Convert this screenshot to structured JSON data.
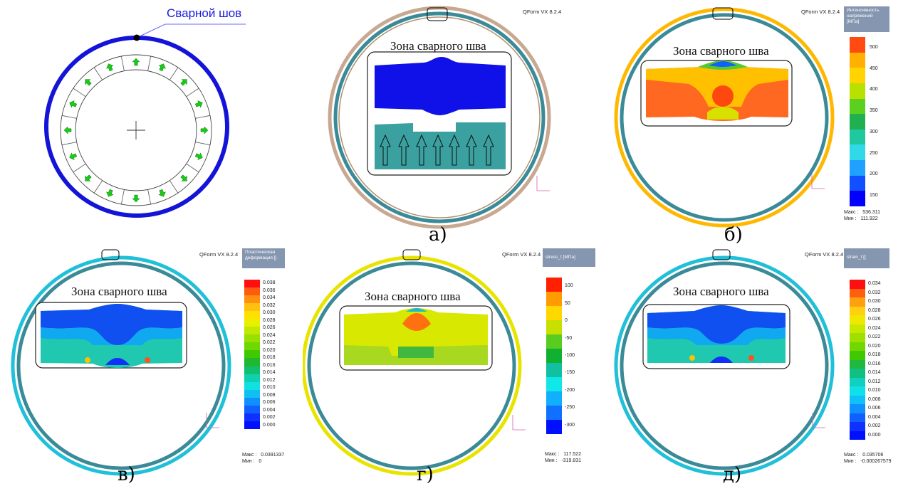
{
  "panel0": {
    "weld_label": "Сварной шов"
  },
  "software": "QForm VX 8.2.4",
  "zone_title": "Зона сварного шва",
  "captions": [
    "а)",
    "б)",
    "в)",
    "г)",
    "д)"
  ],
  "legend_b": {
    "title_lines": [
      "Интенсивность",
      "напряжений",
      "[МПа]"
    ],
    "ticks": [
      "500",
      "450",
      "400",
      "350",
      "300",
      "250",
      "200",
      "150"
    ],
    "colors": [
      "#ff4a12",
      "#ffb000",
      "#ffd400",
      "#b8e000",
      "#5cd020",
      "#20b050",
      "#20c8a0",
      "#30d8e8",
      "#20a0ff",
      "#1050ff",
      "#0000ff"
    ],
    "max_label": "Макс :",
    "max_value": "536.311",
    "min_label": "Мин :",
    "min_value": "111.922"
  },
  "legend_v": {
    "title_lines": [
      "Пластическая",
      "деформация  []"
    ],
    "ticks": [
      "0.038",
      "0.036",
      "0.034",
      "0.032",
      "0.030",
      "0.028",
      "0.026",
      "0.024",
      "0.022",
      "0.020",
      "0.018",
      "0.016",
      "0.014",
      "0.012",
      "0.010",
      "0.008",
      "0.006",
      "0.004",
      "0.002",
      "0.000"
    ],
    "colors": [
      "#ff1010",
      "#ff5a10",
      "#ff9010",
      "#ffc010",
      "#ffe000",
      "#e8f000",
      "#c0e800",
      "#98e000",
      "#70d800",
      "#40c800",
      "#20b830",
      "#10c070",
      "#10d0b0",
      "#10e0e0",
      "#10c0f0",
      "#1090ff",
      "#1060ff",
      "#1030ff",
      "#0010ff"
    ],
    "max_label": "Макс :",
    "max_value": "0.0391337",
    "min_label": "Мин :",
    "min_value": "0"
  },
  "legend_g": {
    "title_lines": [
      "stress_t   [МПа]"
    ],
    "ticks": [
      "100",
      "50",
      "0",
      "-50",
      "-100",
      "-150",
      "-200",
      "-250",
      "-300"
    ],
    "colors": [
      "#ff2000",
      "#ff9a00",
      "#ffd800",
      "#c8e000",
      "#58cc20",
      "#10b030",
      "#10c0a0",
      "#10e8e8",
      "#10b0ff",
      "#1070ff",
      "#0010ff"
    ],
    "max_label": "Макс :",
    "max_value": "117.522",
    "min_label": "Мин :",
    "min_value": "-319.831"
  },
  "legend_d": {
    "title_lines": [
      "strain_t  []"
    ],
    "ticks": [
      "0.034",
      "0.032",
      "0.030",
      "0.028",
      "0.026",
      "0.024",
      "0.022",
      "0.020",
      "0.018",
      "0.016",
      "0.014",
      "0.012",
      "0.010",
      "0.008",
      "0.006",
      "0.004",
      "0.002",
      "0.000"
    ],
    "colors": [
      "#ff1010",
      "#ff6010",
      "#ffa010",
      "#ffd010",
      "#f0e800",
      "#c8e800",
      "#a0e000",
      "#70d800",
      "#40c800",
      "#20b840",
      "#10c080",
      "#10d0c0",
      "#10e0e8",
      "#10c0f8",
      "#1090ff",
      "#1060ff",
      "#1030ff",
      "#0010ff"
    ],
    "max_label": "Макс :",
    "max_value": "0.035706",
    "min_label": "Мин :",
    "min_value": "-0.000267579"
  }
}
